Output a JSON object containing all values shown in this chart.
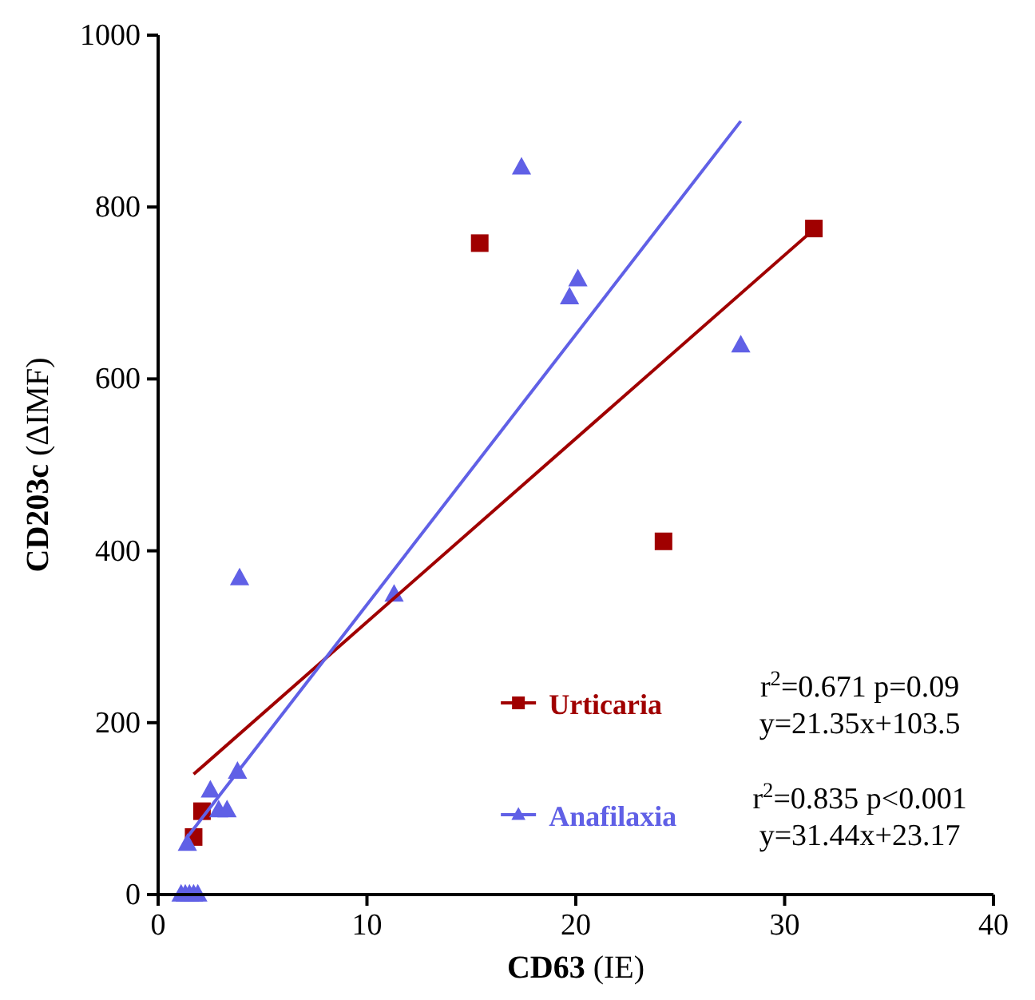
{
  "chart_data": {
    "type": "scatter",
    "xlabel": "CD63 (IE)",
    "ylabel": "CD203c (ΔIMF)",
    "xlim": [
      0,
      40
    ],
    "xticks": [
      0,
      10,
      20,
      30,
      40
    ],
    "ylim": [
      0,
      1000
    ],
    "yticks": [
      0,
      200,
      400,
      600,
      800,
      1000
    ],
    "grid": false,
    "legend": "bottom right",
    "series": [
      {
        "name": "Urticaria",
        "color": "#a00000",
        "marker": "square",
        "x": [
          1.7,
          2.1,
          15.4,
          24.2,
          31.4
        ],
        "values": [
          67,
          97,
          758,
          411,
          775
        ]
      },
      {
        "name": "Anafilaxia",
        "color": "#6060e6",
        "marker": "triangle",
        "x": [
          1.1,
          1.3,
          1.5,
          1.7,
          1.9,
          1.4,
          2.5,
          2.9,
          3.3,
          3.8,
          3.9,
          11.3,
          17.4,
          19.7,
          20.1,
          27.9
        ],
        "values": [
          0,
          0,
          0,
          0,
          0,
          59,
          121,
          98,
          98,
          143,
          368,
          349,
          846,
          695,
          716,
          639
        ]
      },
      {
        "type": "line",
        "color": "#a00000",
        "marker": "none",
        "x": [
          1.7,
          31.4
        ],
        "values": [
          140,
          774
        ]
      },
      {
        "type": "line",
        "color": "#6060e6",
        "marker": "none",
        "x": [
          1.4,
          27.9
        ],
        "values": [
          67,
          900
        ]
      }
    ],
    "annotations": [
      "r$^{2}$=0.671 p=0.09\ny=21.35x+103.5",
      "r$^{2}$=0.835 p<0.001\ny=31.44x+23.17"
    ]
  }
}
